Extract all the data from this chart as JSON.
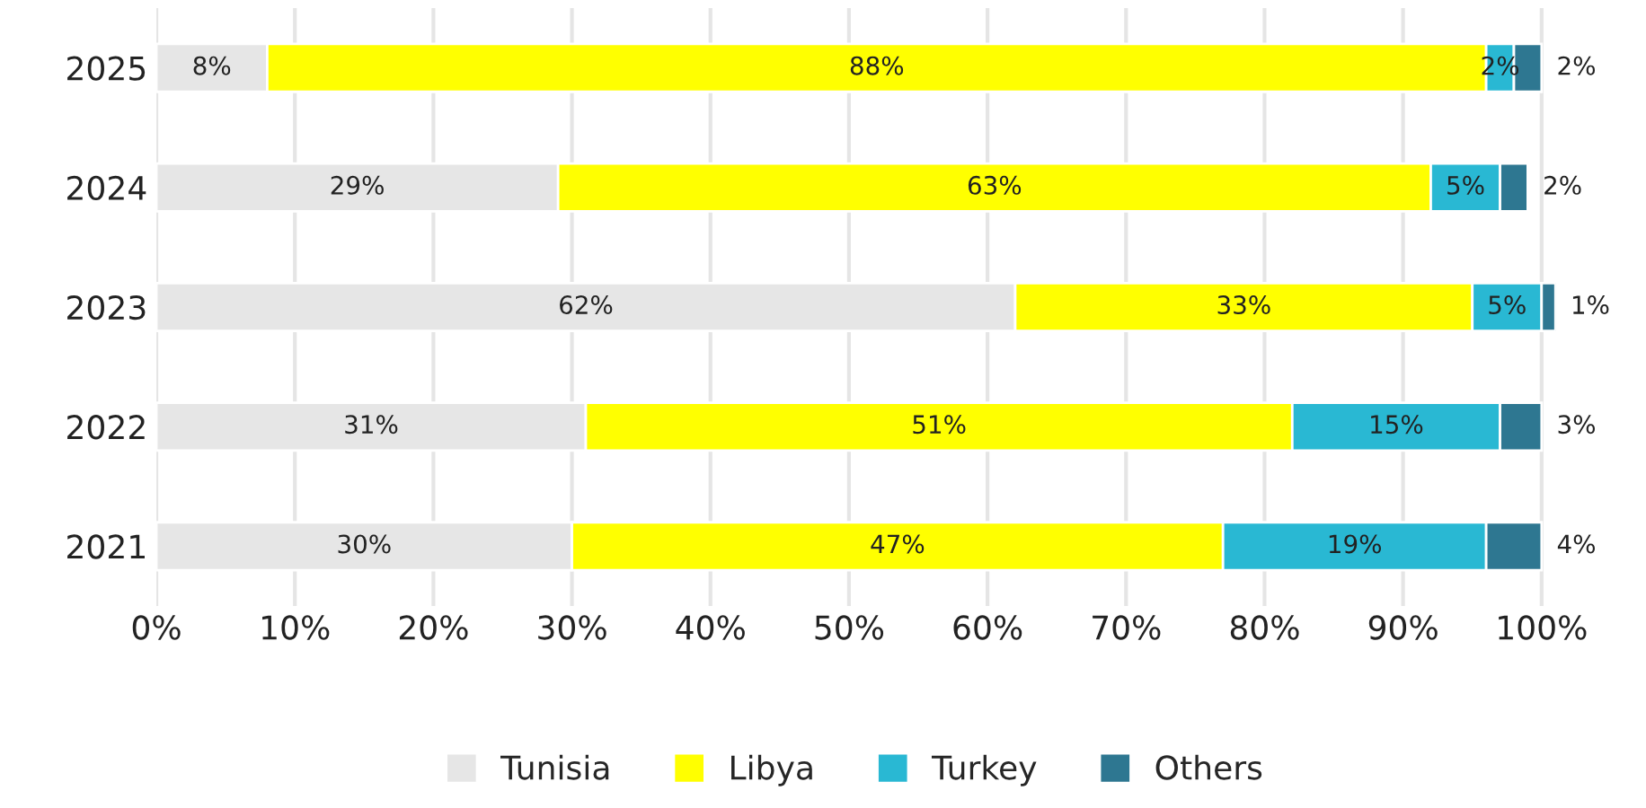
{
  "chart_data": {
    "type": "bar",
    "orientation": "horizontal",
    "stacked": true,
    "grid": "x",
    "legend": "bottom",
    "categories": [
      "2025",
      "2024",
      "2023",
      "2022",
      "2021"
    ],
    "series": [
      {
        "name": "Tunisia",
        "color": "#e6e6e6",
        "values": [
          8,
          29,
          62,
          31,
          30
        ],
        "value_labels": [
          "8%",
          "29%",
          "62%",
          "31%",
          "30%"
        ]
      },
      {
        "name": "Libya",
        "color": "#ffff00",
        "values": [
          88,
          63,
          33,
          51,
          47
        ],
        "value_labels": [
          "88%",
          "63%",
          "33%",
          "51%",
          "47%"
        ]
      },
      {
        "name": "Turkey",
        "color": "#29b8d3",
        "values": [
          2,
          5,
          5,
          15,
          19
        ],
        "value_labels": [
          "2%",
          "5%",
          "5%",
          "15%",
          "19%"
        ]
      },
      {
        "name": "Others",
        "color": "#2e7791",
        "values": [
          2,
          2,
          1,
          3,
          4
        ],
        "value_labels": [
          "2%",
          "2%",
          "1%",
          "3%",
          "4%"
        ]
      }
    ],
    "xlim": [
      0,
      101
    ],
    "xticks": [
      {
        "value": 0,
        "label": "0%"
      },
      {
        "value": 10,
        "label": "10%"
      },
      {
        "value": 20,
        "label": "20%"
      },
      {
        "value": 30,
        "label": "30%"
      },
      {
        "value": 40,
        "label": "40%"
      },
      {
        "value": 50,
        "label": "50%"
      },
      {
        "value": 60,
        "label": "60%"
      },
      {
        "value": 70,
        "label": "70%"
      },
      {
        "value": 80,
        "label": "80%"
      },
      {
        "value": 90,
        "label": "90%"
      },
      {
        "value": 100,
        "label": "100%"
      }
    ]
  }
}
